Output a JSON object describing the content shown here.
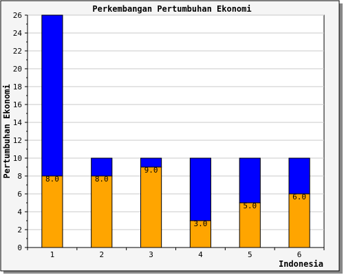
{
  "chart_data": {
    "type": "bar",
    "stacked": true,
    "title": "Perkembangan Pertumbuhan Ekonomi",
    "xlabel": "Indonesia",
    "ylabel": "Pertumbuhan Ekonomi",
    "categories": [
      "1",
      "2",
      "3",
      "4",
      "5",
      "6"
    ],
    "ylim": [
      0,
      26
    ],
    "yticks": [
      0,
      2,
      4,
      6,
      8,
      10,
      12,
      14,
      16,
      18,
      20,
      22,
      24,
      26
    ],
    "grid": true,
    "series": [
      {
        "values": [
          8,
          8,
          9,
          3,
          5,
          6
        ],
        "labels": [
          "8.0",
          "8.0",
          "9.0",
          "3.0",
          "5.0",
          "6.0"
        ],
        "color": "#ffa500"
      },
      {
        "values": [
          18,
          2,
          1,
          7,
          5,
          4
        ],
        "color": "#0000ff"
      }
    ]
  }
}
